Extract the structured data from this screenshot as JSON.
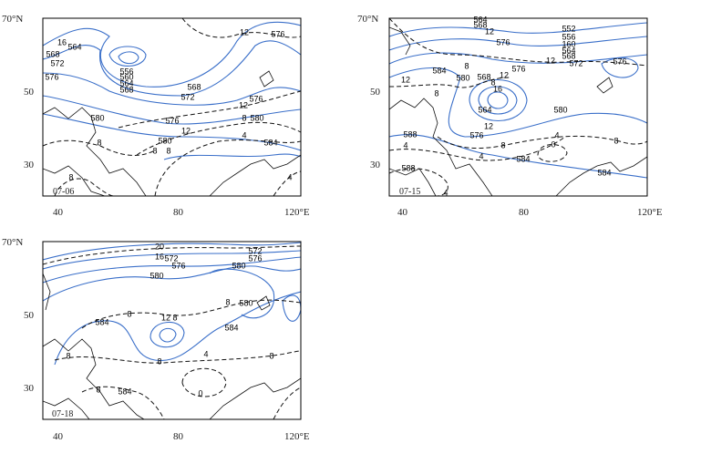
{
  "panels": [
    {
      "label": "07-06",
      "lat_labels": [
        "70°N",
        "50",
        "30"
      ],
      "lon_labels": [
        "40",
        "80",
        "120°E"
      ],
      "contour_labels": [
        16,
        564,
        568,
        572,
        576,
        556,
        560,
        564,
        568,
        568,
        572,
        12,
        576,
        12,
        576,
        8,
        580,
        580,
        576,
        12,
        8,
        580,
        8,
        8,
        4,
        584,
        8,
        4
      ]
    },
    {
      "label": "07-15",
      "lat_labels": [
        "70°N",
        "50",
        "30"
      ],
      "lon_labels": [
        "40",
        "80",
        "120°E"
      ],
      "contour_labels": [
        564,
        568,
        552,
        556,
        12,
        576,
        160,
        564,
        568,
        572,
        12,
        8,
        584,
        580,
        576,
        12,
        8,
        568,
        8,
        12,
        16,
        564,
        12,
        576,
        580,
        8,
        4,
        0,
        8,
        588,
        4,
        4,
        584,
        588,
        584,
        4,
        576
      ]
    },
    {
      "label": "07-18",
      "lat_labels": [
        "70°N",
        "50",
        "30"
      ],
      "lon_labels": [
        "40",
        "80",
        "120°E"
      ],
      "contour_labels": [
        20,
        16,
        572,
        576,
        572,
        576,
        580,
        580,
        584,
        8,
        8,
        580,
        12,
        8,
        584,
        8,
        8,
        4,
        8,
        8,
        584,
        0
      ]
    }
  ]
}
